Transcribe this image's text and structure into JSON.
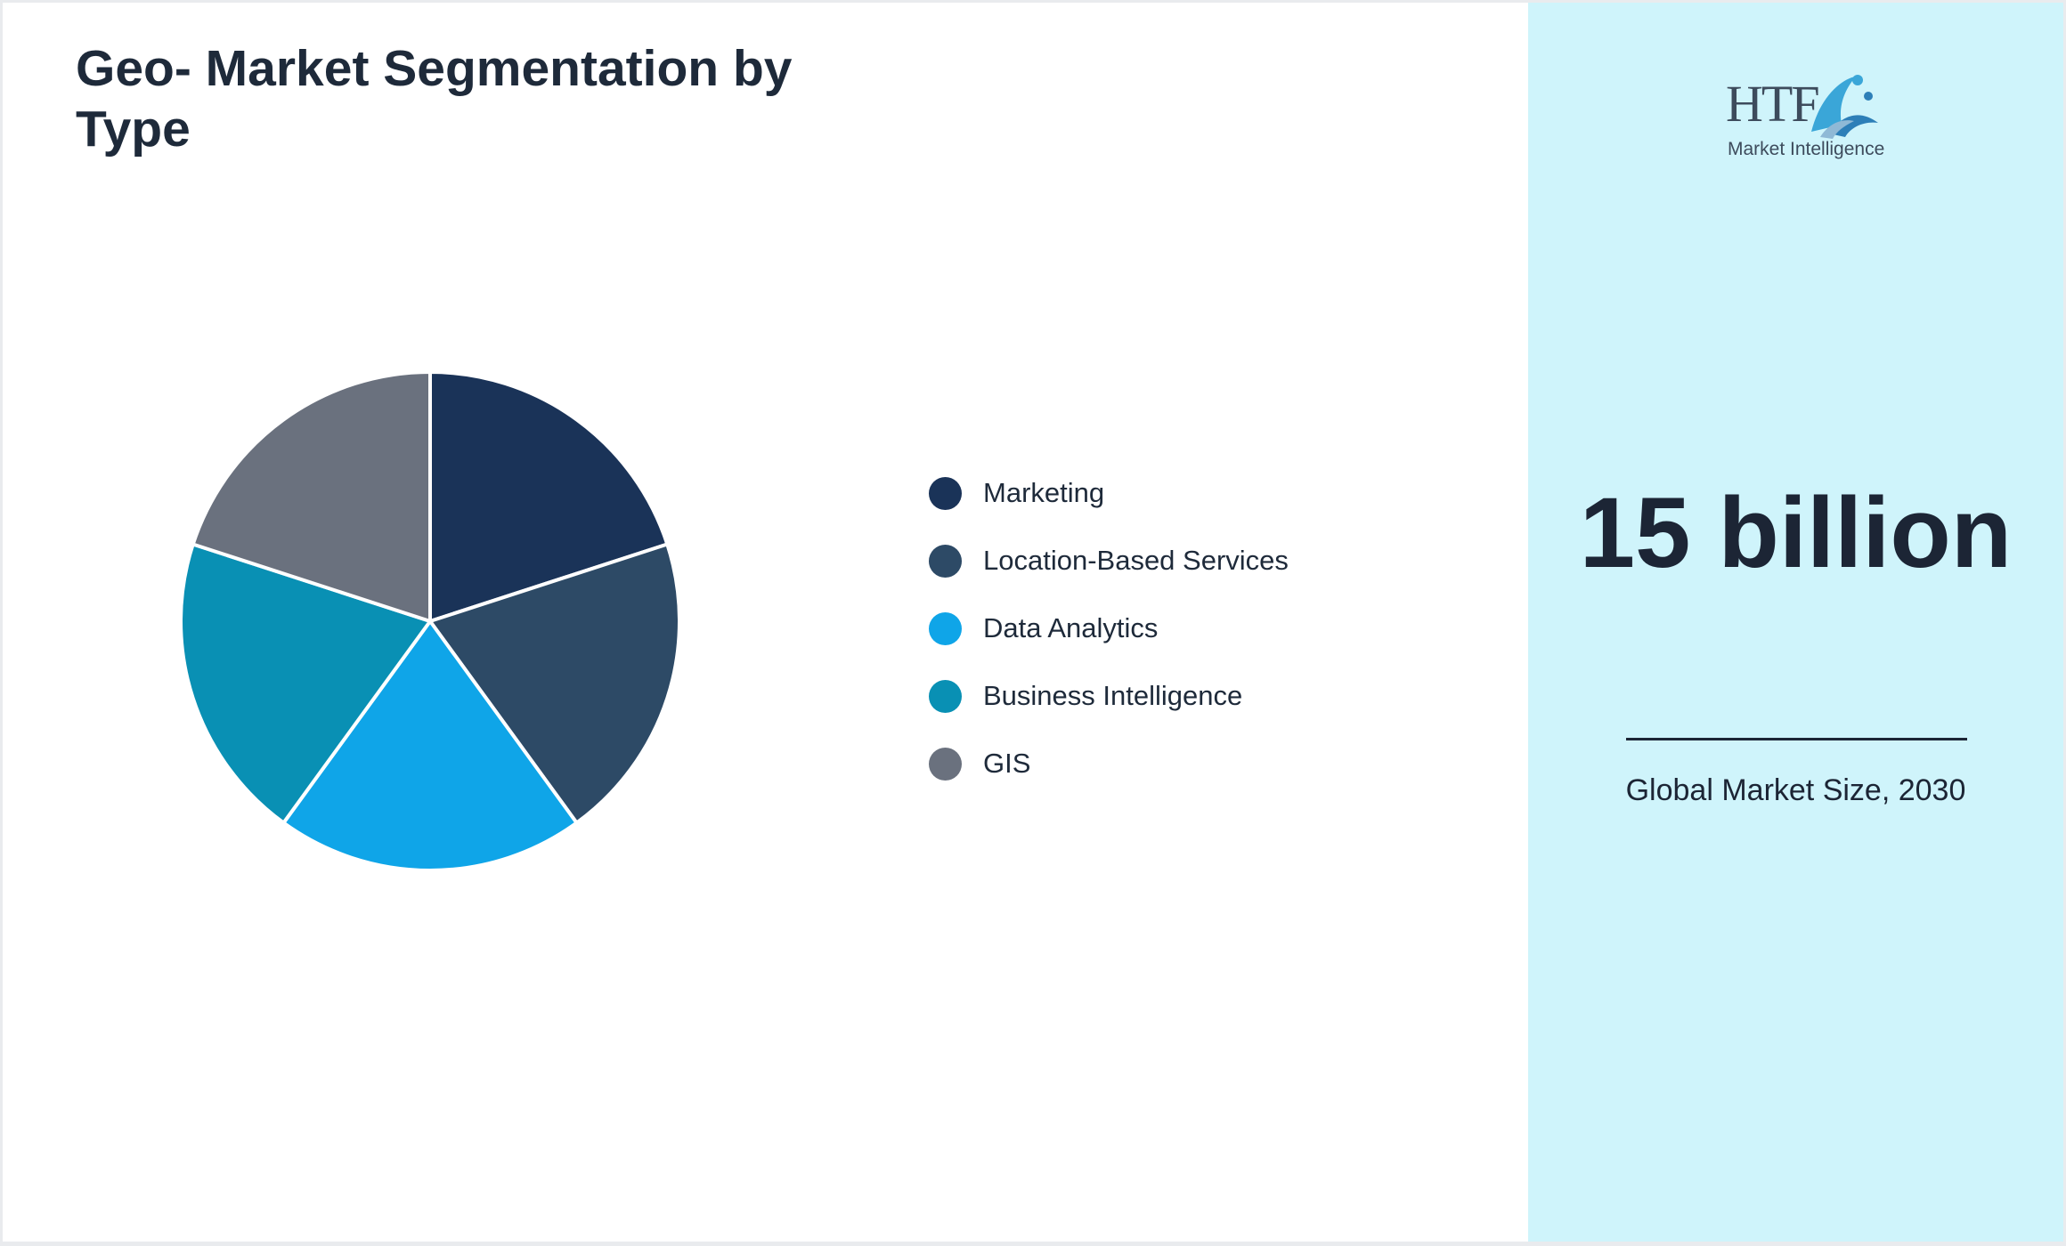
{
  "header": {
    "title": "Geo- Market Segmentation by Type"
  },
  "chart_data": {
    "type": "pie",
    "title": "Geo- Market Segmentation by Type",
    "categories": [
      "Marketing",
      "Location-Based Services",
      "Data Analytics",
      "Business Intelligence",
      "GIS"
    ],
    "values": [
      20,
      20,
      20,
      20,
      20
    ],
    "colors": [
      "#1a3358",
      "#2d4a66",
      "#0fa5e8",
      "#0990b4",
      "#6a717e"
    ],
    "legend_position": "right"
  },
  "side": {
    "logo": {
      "name": "htf-logo",
      "wordmark": "HTF",
      "subtitle": "Market Intelligence"
    },
    "value": "15 billion",
    "caption": "Global Market Size, 2030"
  }
}
